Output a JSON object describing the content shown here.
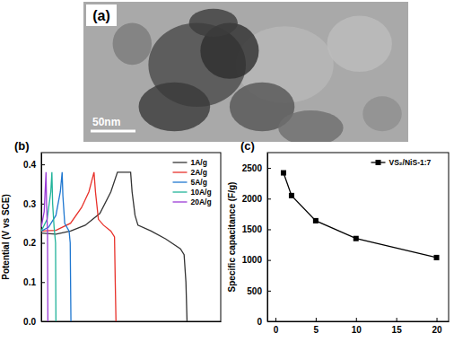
{
  "chart_data": [
    {
      "type": "image",
      "title": "(a)",
      "annotations": [
        "50nm"
      ]
    },
    {
      "type": "line",
      "title": "(b)",
      "y_label": "Potential (V vs SCE)",
      "xlim": [
        0,
        2450
      ],
      "ylim": [
        0,
        0.43
      ],
      "yticks": [
        {
          "value": 0,
          "label": "0.0"
        },
        {
          "value": 0.1,
          "label": "0.1"
        },
        {
          "value": 0.2,
          "label": "0.2"
        },
        {
          "value": 0.3,
          "label": "0.3"
        },
        {
          "value": 0.4,
          "label": "0.4"
        }
      ],
      "tick_labels": "y",
      "legend": "upper right",
      "series": [
        {
          "name": "1A/g",
          "color": "#333333",
          "x": [
            0,
            200,
            400,
            600,
            800,
            950,
            1040,
            1220,
            1240,
            1280,
            1320,
            1500,
            1700,
            1900,
            1950,
            1975,
            1990
          ],
          "values": [
            0.225,
            0.222,
            0.23,
            0.245,
            0.275,
            0.33,
            0.38,
            0.38,
            0.33,
            0.27,
            0.245,
            0.23,
            0.21,
            0.185,
            0.17,
            0.1,
            0
          ]
        },
        {
          "name": "2A/g",
          "color": "#e8312a",
          "x": [
            0,
            200,
            400,
            550,
            650,
            720,
            740,
            780,
            850,
            950,
            1000,
            1010,
            1020
          ],
          "values": [
            0.23,
            0.232,
            0.25,
            0.29,
            0.33,
            0.38,
            0.33,
            0.26,
            0.245,
            0.23,
            0.215,
            0.1,
            0
          ]
        },
        {
          "name": "5A/g",
          "color": "#1f77d0",
          "x": [
            0,
            100,
            200,
            260,
            285,
            295,
            320,
            380,
            395,
            405
          ],
          "values": [
            0.23,
            0.24,
            0.27,
            0.33,
            0.38,
            0.32,
            0.25,
            0.23,
            0.2,
            0
          ]
        },
        {
          "name": "10A/g",
          "color": "#21b39a",
          "x": [
            0,
            80,
            130,
            145,
            155,
            175,
            195,
            200
          ],
          "values": [
            0.23,
            0.26,
            0.33,
            0.38,
            0.3,
            0.24,
            0.2,
            0
          ]
        },
        {
          "name": "20A/g",
          "color": "#9b3bd6",
          "x": [
            0,
            40,
            65,
            72,
            85,
            90
          ],
          "values": [
            0.24,
            0.28,
            0.38,
            0.3,
            0.23,
            0
          ]
        }
      ]
    },
    {
      "type": "line",
      "title": "(c)",
      "y_label": "Specific capacitance (F/g)",
      "x": [
        1,
        2,
        5,
        10,
        20
      ],
      "xlim": [
        -1,
        21.5
      ],
      "ylim": [
        0,
        2750
      ],
      "xticks": [
        0,
        5,
        10,
        15,
        20
      ],
      "yticks": [
        0,
        500,
        1000,
        1500,
        2000,
        2500
      ],
      "legend": "upper right",
      "series": [
        {
          "name": "VS₂/NiS-1:7",
          "color": "#000000",
          "marker": "square",
          "values": [
            2420,
            2050,
            1640,
            1350,
            1040
          ]
        }
      ]
    }
  ]
}
